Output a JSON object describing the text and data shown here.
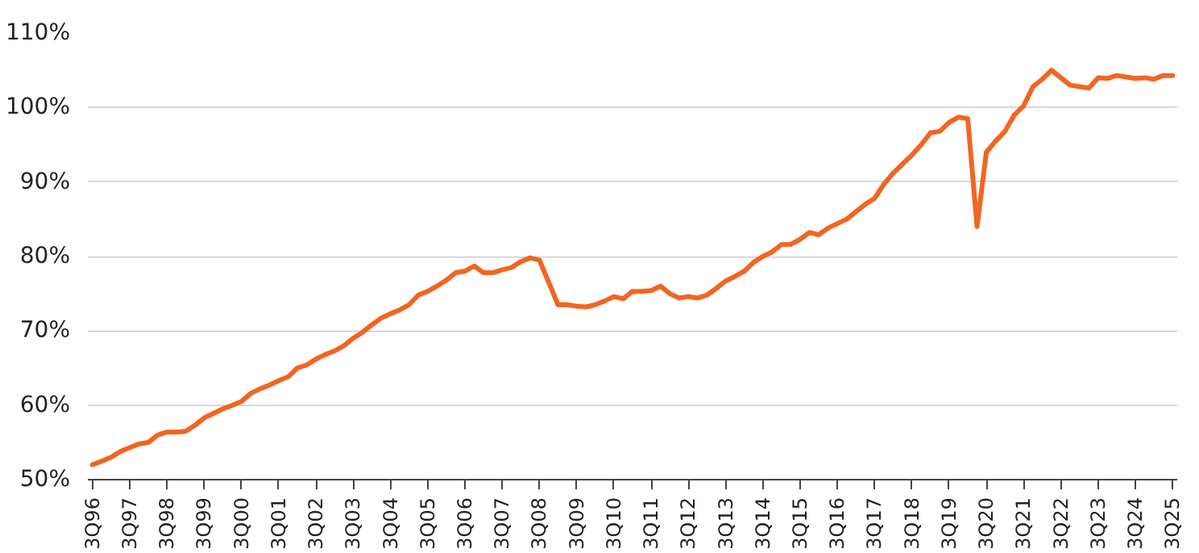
{
  "chart_data": {
    "type": "line",
    "categories": [
      "3Q96",
      null,
      null,
      null,
      "3Q97",
      null,
      null,
      null,
      "3Q98",
      null,
      null,
      null,
      "3Q99",
      null,
      null,
      null,
      "3Q00",
      null,
      null,
      null,
      "3Q01",
      null,
      null,
      null,
      "3Q02",
      null,
      null,
      null,
      "3Q03",
      null,
      null,
      null,
      "3Q04",
      null,
      null,
      null,
      "3Q05",
      null,
      null,
      null,
      "3Q06",
      null,
      null,
      null,
      "3Q07",
      null,
      null,
      null,
      "3Q08",
      null,
      null,
      null,
      "3Q09",
      null,
      null,
      null,
      "3Q10",
      null,
      null,
      null,
      "3Q11",
      null,
      null,
      null,
      "3Q12",
      null,
      null,
      null,
      "3Q13",
      null,
      null,
      null,
      "3Q14",
      null,
      null,
      null,
      "3Q15",
      null,
      null,
      null,
      "3Q16",
      null,
      null,
      null,
      "3Q17",
      null,
      null,
      null,
      "3Q18",
      null,
      null,
      null,
      "3Q19",
      null,
      null,
      null,
      "3Q20",
      null,
      null,
      null,
      "3Q21",
      null,
      null,
      null,
      "3Q22",
      null,
      null,
      null,
      "3Q23",
      null,
      null,
      null,
      "3Q24",
      null,
      null,
      null,
      "3Q25"
    ],
    "series": [
      {
        "color": "#f26522",
        "values": [
          52.0,
          52.5,
          53.0,
          53.8,
          54.3,
          54.8,
          55.0,
          56.0,
          56.4,
          56.4,
          56.5,
          57.3,
          58.3,
          58.9,
          59.5,
          60.0,
          60.5,
          61.6,
          62.2,
          62.7,
          63.3,
          63.8,
          65.0,
          65.4,
          66.2,
          66.8,
          67.3,
          68.0,
          69.0,
          69.8,
          70.8,
          71.7,
          72.3,
          72.8,
          73.5,
          74.8,
          75.3,
          76.0,
          76.8,
          77.8,
          78.0,
          78.7,
          77.8,
          77.8,
          78.2,
          78.5,
          79.3,
          79.8,
          79.5,
          76.5,
          73.5,
          73.5,
          73.3,
          73.2,
          73.5,
          74.0,
          74.6,
          74.3,
          75.3,
          75.3,
          75.4,
          76.0,
          75.0,
          74.4,
          74.6,
          74.4,
          74.8,
          75.7,
          76.7,
          77.3,
          78.0,
          79.2,
          80.0,
          80.6,
          81.6,
          81.6,
          82.3,
          83.2,
          82.9,
          83.8,
          84.4,
          85.0,
          86.0,
          87.0,
          87.8,
          89.7,
          91.2,
          92.4,
          93.6,
          95.0,
          96.6,
          96.8,
          98.0,
          98.7,
          98.5,
          84.0,
          94.0,
          95.5,
          96.8,
          99.0,
          100.2,
          102.8,
          103.8,
          105.0,
          104.0,
          103.0,
          102.8,
          102.6,
          104.0,
          103.9,
          104.3,
          104.1,
          103.9,
          104.0,
          103.8,
          104.3,
          104.3
        ]
      }
    ],
    "ylim": [
      50,
      110
    ],
    "yticks": [
      {
        "value": 50,
        "label": "50%"
      },
      {
        "value": 60,
        "label": "60%"
      },
      {
        "value": 70,
        "label": "70%"
      },
      {
        "value": 80,
        "label": "80%"
      },
      {
        "value": 90,
        "label": "90%"
      },
      {
        "value": 100,
        "label": "100%"
      },
      {
        "value": 110,
        "label": "110%"
      }
    ],
    "grid": "y"
  }
}
